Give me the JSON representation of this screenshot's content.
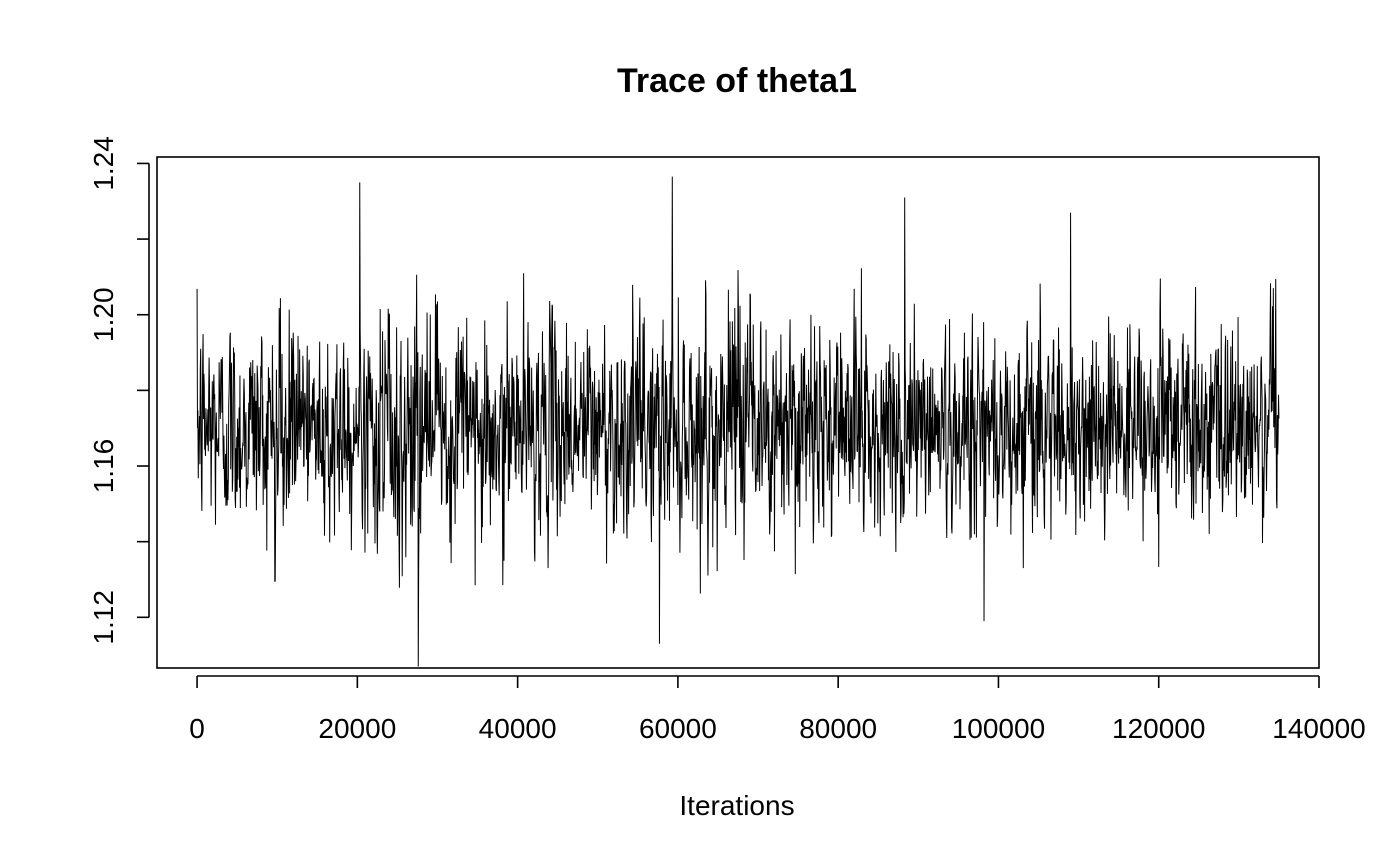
{
  "chart_data": {
    "type": "line",
    "title": "Trace of theta1",
    "xlabel": "Iterations",
    "ylabel": "",
    "xlim": [
      -5000,
      140000
    ],
    "ylim": [
      1.1066,
      1.2417
    ],
    "x_ticks": [
      0,
      20000,
      40000,
      60000,
      80000,
      100000,
      120000,
      140000
    ],
    "y_ticks": [
      1.12,
      1.14,
      1.16,
      1.18,
      1.2,
      1.22,
      1.24
    ],
    "x_tick_labels": [
      "0",
      "20000",
      "40000",
      "60000",
      "80000",
      "100000",
      "120000",
      "140000"
    ],
    "y_tick_labels": [
      "1.12",
      "",
      "1.16",
      "",
      "1.20",
      "",
      "1.24"
    ],
    "grid": false,
    "line_color": "#000000",
    "series": [
      {
        "n_iterations": 135000,
        "mean": 1.1705,
        "sd": 0.0135,
        "range": [
          1.107,
          1.2365
        ],
        "notable_values": [
          {
            "x": 20300,
            "y": 1.235
          },
          {
            "x": 27600,
            "y": 1.107
          },
          {
            "x": 57700,
            "y": 1.113
          },
          {
            "x": 59300,
            "y": 1.2365
          },
          {
            "x": 88300,
            "y": 1.231
          },
          {
            "x": 98200,
            "y": 1.119
          },
          {
            "x": 109000,
            "y": 1.227
          }
        ]
      }
    ]
  }
}
